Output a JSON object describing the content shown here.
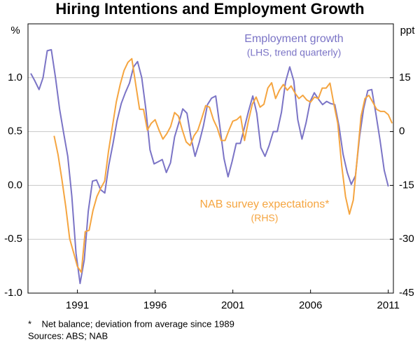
{
  "chart_data": {
    "type": "line",
    "title": "Hiring Intentions and Employment Growth",
    "ylabel": "%",
    "y2label": "ppt",
    "footnote": "*    Net balance; deviation from average since 1989",
    "sources": "Sources: ABS; NAB",
    "xlim": [
      1987.82,
      2011.33
    ],
    "xticks": [
      1991,
      1996,
      2001,
      2006,
      2011
    ],
    "ylim": [
      -1,
      1.5
    ],
    "yticks": [
      {
        "value": -1,
        "label": "-1.0"
      },
      {
        "value": -0.5,
        "label": "-0.5"
      },
      {
        "value": 0,
        "label": "0.0"
      },
      {
        "value": 0.5,
        "label": "0.5"
      },
      {
        "value": 1,
        "label": "1.0"
      }
    ],
    "y2lim": [
      -45,
      30
    ],
    "y2ticks": [
      -45,
      -30,
      -15,
      0,
      15
    ],
    "grid": true,
    "series": [
      {
        "name": "Employment growth",
        "subtitle": "(LHS, trend quarterly)",
        "color": "#7b74c6",
        "x": [
          1988.0,
          1988.26,
          1988.53,
          1988.79,
          1989.06,
          1989.32,
          1989.59,
          1989.85,
          1990.12,
          1990.38,
          1990.64,
          1990.91,
          1991.17,
          1991.44,
          1991.7,
          1991.97,
          1992.23,
          1992.49,
          1992.76,
          1993.02,
          1993.29,
          1993.55,
          1993.82,
          1994.08,
          1994.35,
          1994.61,
          1994.87,
          1995.14,
          1995.4,
          1995.67,
          1995.93,
          1996.2,
          1996.46,
          1996.72,
          1996.99,
          1997.25,
          1997.52,
          1997.78,
          1998.05,
          1998.31,
          1998.57,
          1998.84,
          1999.1,
          1999.37,
          1999.63,
          1999.9,
          2000.16,
          2000.43,
          2000.69,
          2000.95,
          2001.22,
          2001.48,
          2001.75,
          2002.01,
          2002.28,
          2002.54,
          2002.8,
          2003.07,
          2003.33,
          2003.6,
          2003.86,
          2004.13,
          2004.39,
          2004.66,
          2004.92,
          2005.18,
          2005.45,
          2005.71,
          2005.98,
          2006.24,
          2006.51,
          2006.77,
          2007.04,
          2007.3,
          2007.56,
          2007.83,
          2008.09,
          2008.36,
          2008.62,
          2008.89,
          2009.15,
          2009.41,
          2009.68,
          2009.94,
          2010.21,
          2010.47,
          2010.74,
          2011.0
        ],
        "values": [
          1.04,
          0.97,
          0.89,
          1.0,
          1.25,
          1.26,
          1.0,
          0.71,
          0.48,
          0.27,
          -0.1,
          -0.63,
          -0.91,
          -0.69,
          -0.24,
          0.04,
          0.05,
          -0.04,
          -0.07,
          0.19,
          0.39,
          0.6,
          0.76,
          0.86,
          0.95,
          1.1,
          1.15,
          1.0,
          0.71,
          0.33,
          0.2,
          0.22,
          0.24,
          0.12,
          0.21,
          0.45,
          0.58,
          0.71,
          0.67,
          0.44,
          0.27,
          0.4,
          0.55,
          0.75,
          0.81,
          0.83,
          0.55,
          0.25,
          0.08,
          0.22,
          0.39,
          0.39,
          0.54,
          0.69,
          0.83,
          0.67,
          0.35,
          0.27,
          0.37,
          0.5,
          0.5,
          0.68,
          0.96,
          1.1,
          0.97,
          0.61,
          0.43,
          0.58,
          0.78,
          0.86,
          0.8,
          0.75,
          0.78,
          0.76,
          0.75,
          0.55,
          0.29,
          0.12,
          0.01,
          0.09,
          0.45,
          0.71,
          0.88,
          0.89,
          0.66,
          0.42,
          0.14,
          -0.01
        ]
      },
      {
        "name": "NAB survey expectations*",
        "subtitle": "(RHS)",
        "color": "#f5a540",
        "axis": "y2",
        "x": [
          1989.5,
          1989.75,
          1990,
          1990.25,
          1990.5,
          1990.75,
          1991,
          1991.25,
          1991.5,
          1991.75,
          1992,
          1992.25,
          1992.5,
          1992.75,
          1993,
          1993.25,
          1993.5,
          1993.75,
          1994,
          1994.25,
          1994.5,
          1994.75,
          1995,
          1995.25,
          1995.5,
          1995.75,
          1996,
          1996.25,
          1996.5,
          1996.75,
          1997,
          1997.25,
          1997.5,
          1997.75,
          1998,
          1998.25,
          1998.5,
          1998.75,
          1999,
          1999.25,
          1999.5,
          1999.75,
          2000,
          2000.25,
          2000.5,
          2000.75,
          2001,
          2001.25,
          2001.5,
          2001.75,
          2002,
          2002.25,
          2002.5,
          2002.75,
          2003,
          2003.25,
          2003.5,
          2003.75,
          2004,
          2004.25,
          2004.5,
          2004.75,
          2005,
          2005.25,
          2005.5,
          2005.75,
          2006,
          2006.25,
          2006.5,
          2006.75,
          2007,
          2007.25,
          2007.5,
          2007.75,
          2008,
          2008.25,
          2008.5,
          2008.75,
          2009,
          2009.25,
          2009.5,
          2009.75,
          2010,
          2010.25,
          2010.5,
          2010.75,
          2011,
          2011.25
        ],
        "values": [
          -1.2,
          -6.4,
          -13.3,
          -21,
          -29.8,
          -33.7,
          -37.6,
          -39.2,
          -27.9,
          -27.5,
          -22,
          -18.1,
          -15.8,
          -13.8,
          -5.5,
          1.4,
          8.2,
          13.1,
          17,
          19.3,
          20.3,
          13.1,
          6.2,
          6.2,
          0.4,
          2.3,
          3.3,
          0.4,
          -2.1,
          -0.6,
          1.4,
          5.3,
          4.3,
          0.4,
          -2.9,
          -3.9,
          -1.2,
          0.4,
          3.7,
          7.2,
          6.8,
          3.3,
          1,
          -2.5,
          -2.5,
          0.4,
          2.9,
          3.3,
          4.3,
          -2.5,
          2.9,
          7.6,
          9.6,
          6.8,
          7.6,
          12.1,
          13.6,
          9.2,
          11.5,
          13.1,
          11.5,
          12.7,
          10.7,
          9.2,
          10.1,
          8.8,
          8.2,
          9.6,
          9.2,
          12.1,
          12.1,
          13.5,
          7.6,
          2.3,
          -9.4,
          -18.1,
          -23,
          -19.1,
          -7.4,
          4.3,
          9.2,
          10.1,
          8.2,
          6.2,
          5.6,
          5.6,
          4.7,
          2.3
        ]
      }
    ]
  }
}
